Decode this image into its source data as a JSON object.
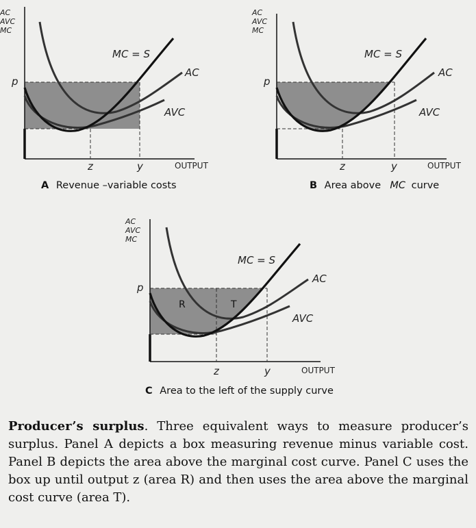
{
  "panels": [
    {
      "id": "A",
      "axis_label_lines": [
        "AC",
        "AVC",
        "MC"
      ],
      "price_label": "p",
      "tick_labels": [
        "z",
        "y"
      ],
      "output_label": "OUTPUT",
      "curve_labels": {
        "mc": "MC = S",
        "ac": "AC",
        "avc": "AVC"
      },
      "caption_letter": "A",
      "caption_text": "Revenue –variable costs",
      "caption_italic": "",
      "caption_tail": ""
    },
    {
      "id": "B",
      "axis_label_lines": [
        "AC",
        "AVC",
        "MC"
      ],
      "price_label": "p",
      "tick_labels": [
        "z",
        "y"
      ],
      "output_label": "OUTPUT",
      "curve_labels": {
        "mc": "MC = S",
        "ac": "AC",
        "avc": "AVC"
      },
      "caption_letter": "B",
      "caption_text": "Area above ",
      "caption_italic": "MC",
      "caption_tail": " curve"
    },
    {
      "id": "C",
      "axis_label_lines": [
        "AC",
        "AVC",
        "MC"
      ],
      "price_label": "p",
      "tick_labels": [
        "z",
        "y"
      ],
      "output_label": "OUTPUT",
      "curve_labels": {
        "mc": "MC = S",
        "ac": "AC",
        "avc": "AVC"
      },
      "area_labels": [
        "R",
        "T"
      ],
      "caption_letter": "C",
      "caption_text": "Area to the left of the supply curve",
      "caption_italic": "",
      "caption_tail": ""
    }
  ],
  "text": {
    "lead": "Producer’s surplus",
    "body": ". Three equivalent ways to measure producer’s surplus. Panel A depicts a box measuring revenue minus variable cost. Panel B depicts the area above the marginal cost curve. Panel C uses the box up until output z (area R) and then uses the area above the marginal cost curve (area T)."
  },
  "colors": {
    "shade": "#8e8e8e",
    "curve": "#333333",
    "supply": "#111111",
    "background": "#efefed"
  }
}
